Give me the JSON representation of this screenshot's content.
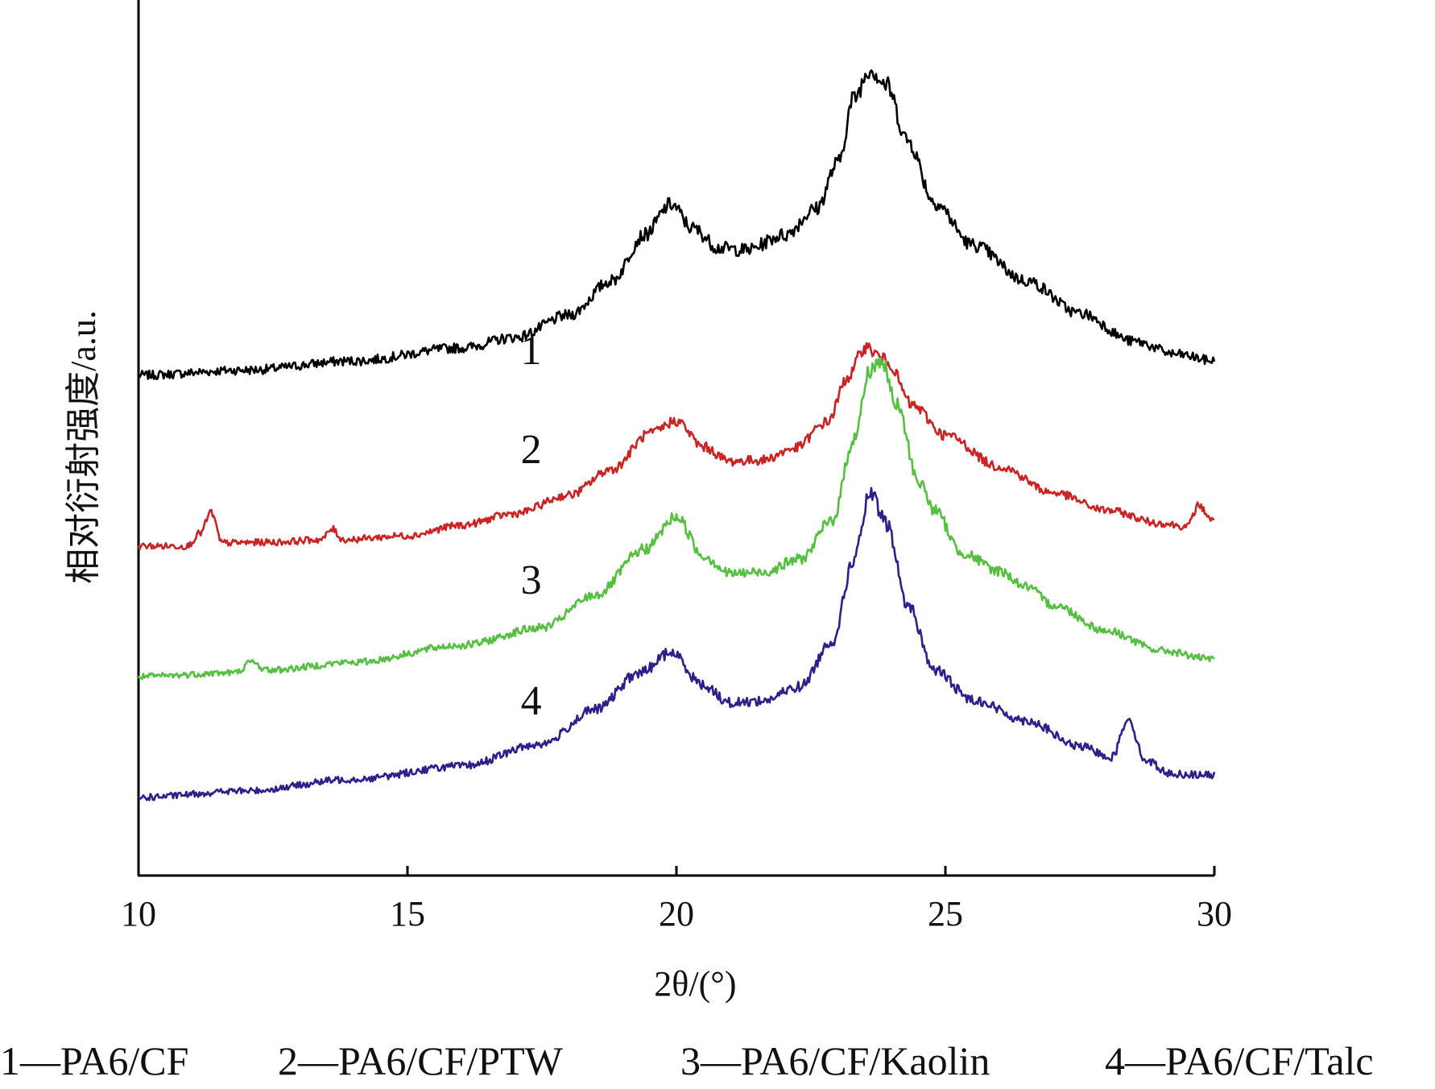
{
  "chart_data": {
    "type": "line",
    "xlabel": "2θ/(°)",
    "ylabel": "相对衍射强度/a.u.",
    "xlim": [
      10,
      30
    ],
    "xticks": [
      10,
      15,
      20,
      25,
      30
    ],
    "tick_labels": [
      "10",
      "15",
      "20",
      "25",
      "30"
    ],
    "grid": false,
    "legend_position": "bottom",
    "series": [
      {
        "name": "PA6/CF",
        "curve_label": "1",
        "legend_text": "1—PA6/CF",
        "color": "#000000",
        "points": [
          [
            10,
            1.1
          ],
          [
            12,
            1.18
          ],
          [
            14,
            1.32
          ],
          [
            16,
            1.52
          ],
          [
            17,
            1.68
          ],
          [
            18,
            2.02
          ],
          [
            18.8,
            2.55
          ],
          [
            19.4,
            3.25
          ],
          [
            19.9,
            3.72
          ],
          [
            20.3,
            3.35
          ],
          [
            20.8,
            3.05
          ],
          [
            21.3,
            3.02
          ],
          [
            22,
            3.25
          ],
          [
            22.6,
            3.65
          ],
          [
            23,
            4.35
          ],
          [
            23.3,
            5.35
          ],
          [
            23.6,
            5.8
          ],
          [
            23.9,
            5.55
          ],
          [
            24.3,
            4.7
          ],
          [
            24.8,
            3.75
          ],
          [
            25.5,
            3.1
          ],
          [
            26.5,
            2.55
          ],
          [
            27.5,
            2.05
          ],
          [
            28.5,
            1.62
          ],
          [
            29.3,
            1.42
          ],
          [
            30,
            1.32
          ]
        ]
      },
      {
        "name": "PA6/CF/PTW",
        "curve_label": "2",
        "legend_text": "2—PA6/CF/PTW",
        "color": "#cc2222",
        "points": [
          [
            10,
            0.0
          ],
          [
            10.9,
            0.0
          ],
          [
            11.15,
            0.2
          ],
          [
            11.35,
            0.52
          ],
          [
            11.55,
            0.05
          ],
          [
            12.5,
            0.06
          ],
          [
            13.4,
            0.1
          ],
          [
            13.6,
            0.26
          ],
          [
            13.8,
            0.1
          ],
          [
            15,
            0.16
          ],
          [
            16,
            0.32
          ],
          [
            17,
            0.5
          ],
          [
            18,
            0.78
          ],
          [
            18.8,
            1.18
          ],
          [
            19.5,
            1.72
          ],
          [
            20,
            1.92
          ],
          [
            20.5,
            1.52
          ],
          [
            21,
            1.3
          ],
          [
            21.6,
            1.32
          ],
          [
            22.2,
            1.5
          ],
          [
            22.8,
            1.9
          ],
          [
            23.2,
            2.6
          ],
          [
            23.5,
            3.05
          ],
          [
            23.9,
            2.85
          ],
          [
            24.4,
            2.15
          ],
          [
            25,
            1.7
          ],
          [
            26,
            1.22
          ],
          [
            27,
            0.82
          ],
          [
            28,
            0.55
          ],
          [
            29,
            0.35
          ],
          [
            29.5,
            0.3
          ],
          [
            29.7,
            0.62
          ],
          [
            30,
            0.38
          ]
        ]
      },
      {
        "name": "PA6/CF/Kaolin",
        "curve_label": "3",
        "legend_text": "3—PA6/CF/Kaolin",
        "color": "#55c040",
        "points": [
          [
            10,
            0.0
          ],
          [
            11.8,
            0.06
          ],
          [
            12.1,
            0.22
          ],
          [
            12.4,
            0.1
          ],
          [
            14,
            0.22
          ],
          [
            16,
            0.48
          ],
          [
            17.5,
            0.75
          ],
          [
            18.5,
            1.25
          ],
          [
            19.4,
            1.95
          ],
          [
            20,
            2.45
          ],
          [
            20.5,
            1.85
          ],
          [
            21,
            1.58
          ],
          [
            21.6,
            1.6
          ],
          [
            22.3,
            1.8
          ],
          [
            22.9,
            2.4
          ],
          [
            23.3,
            3.65
          ],
          [
            23.6,
            4.7
          ],
          [
            23.8,
            4.85
          ],
          [
            24.1,
            4.15
          ],
          [
            24.5,
            3.0
          ],
          [
            24.8,
            2.55
          ],
          [
            25.3,
            1.9
          ],
          [
            26,
            1.62
          ],
          [
            26.5,
            1.38
          ],
          [
            27,
            1.1
          ],
          [
            28,
            0.7
          ],
          [
            29,
            0.4
          ],
          [
            30,
            0.26
          ]
        ]
      },
      {
        "name": "PA6/CF/Talc",
        "curve_label": "4",
        "legend_text": "4—PA6/CF/Talc",
        "color": "#2d1f8c",
        "points": [
          [
            10,
            0.0
          ],
          [
            12,
            0.1
          ],
          [
            14,
            0.28
          ],
          [
            16,
            0.48
          ],
          [
            17.5,
            0.82
          ],
          [
            18.5,
            1.35
          ],
          [
            19.3,
            1.9
          ],
          [
            19.9,
            2.22
          ],
          [
            20.5,
            1.72
          ],
          [
            21,
            1.45
          ],
          [
            21.6,
            1.48
          ],
          [
            22.3,
            1.7
          ],
          [
            22.9,
            2.4
          ],
          [
            23.3,
            3.65
          ],
          [
            23.6,
            4.65
          ],
          [
            23.9,
            4.2
          ],
          [
            24.3,
            2.95
          ],
          [
            24.8,
            1.95
          ],
          [
            25.5,
            1.5
          ],
          [
            26.5,
            1.18
          ],
          [
            27.5,
            0.78
          ],
          [
            28.1,
            0.62
          ],
          [
            28.4,
            1.22
          ],
          [
            28.7,
            0.58
          ],
          [
            29.2,
            0.36
          ],
          [
            30,
            0.34
          ]
        ]
      }
    ]
  }
}
